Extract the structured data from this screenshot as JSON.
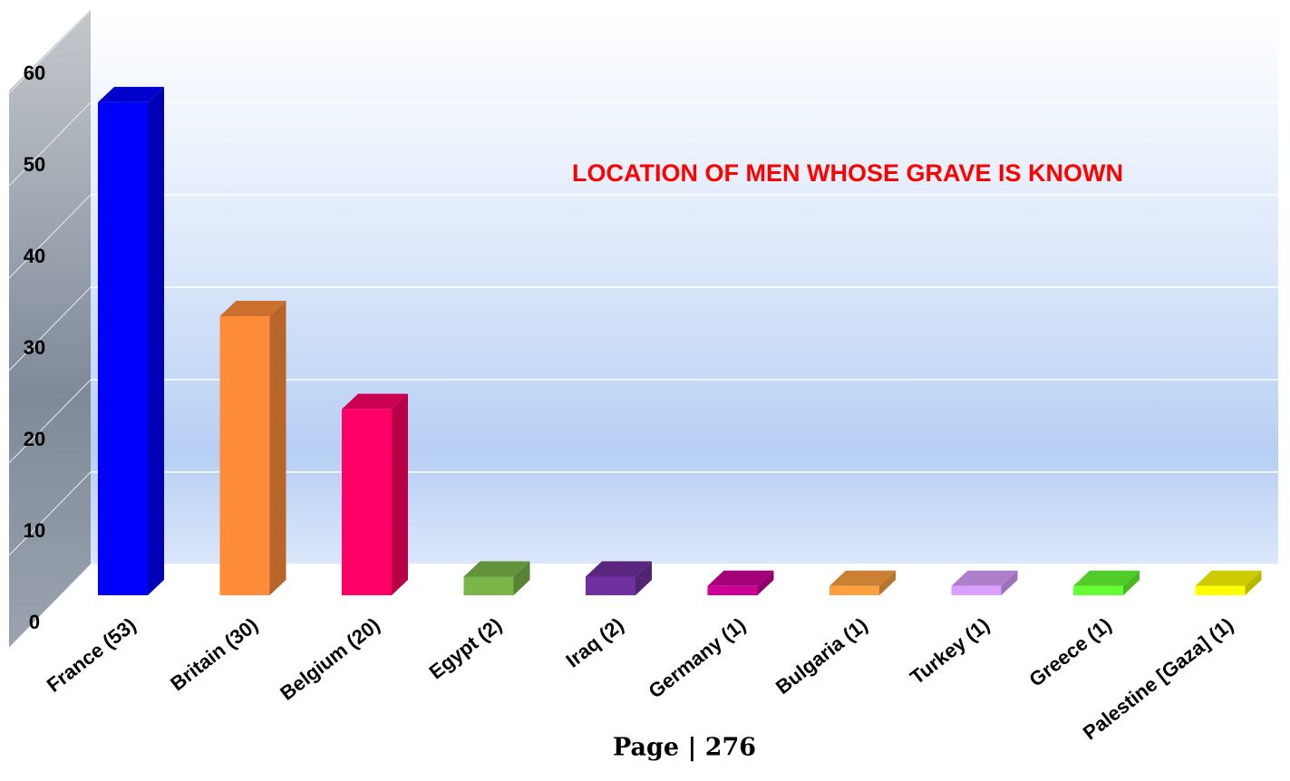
{
  "chart_data": {
    "type": "bar3d",
    "title": "LOCATION OF MEN WHOSE GRAVE IS KNOWN",
    "categories": [
      "France (53)",
      "Britain (30)",
      "Belgium (20)",
      "Egypt (2)",
      "Iraq (2)",
      "Germany (1)",
      "Bulgaria (1)",
      "Turkey (1)",
      "Greece (1)",
      "Palestine [Gaza] (1)"
    ],
    "values": [
      53,
      30,
      20,
      2,
      2,
      1,
      1,
      1,
      1,
      1
    ],
    "colors": [
      "#0000ff",
      "#ff8c3a",
      "#ff0066",
      "#7ab648",
      "#7030a0",
      "#cc0099",
      "#ffa040",
      "#d9a0ff",
      "#66ff33",
      "#ffff00"
    ],
    "ylim": [
      0,
      60
    ],
    "yticks": [
      0,
      10,
      20,
      30,
      40,
      50,
      60
    ],
    "grid": true
  },
  "page_footer": "Page | 276"
}
